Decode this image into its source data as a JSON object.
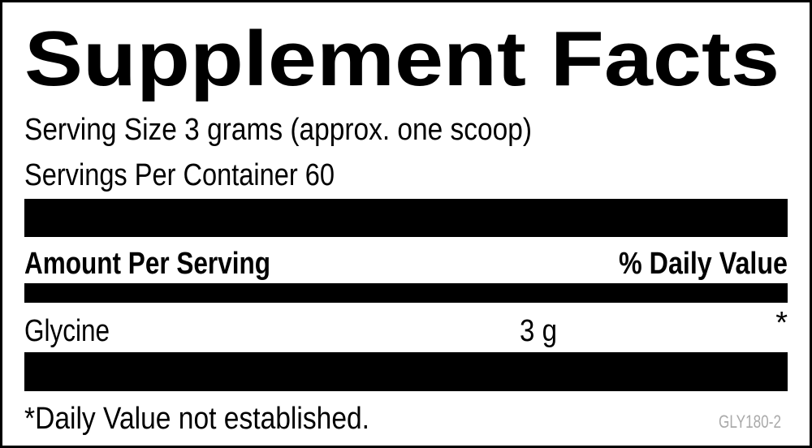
{
  "title": "Supplement Facts",
  "serving_size": "Serving Size 3 grams (approx. one scoop)",
  "servings_per_container": "Servings Per Container 60",
  "header": {
    "amount_per_serving": "Amount Per Serving",
    "daily_value": "% Daily Value"
  },
  "rows": [
    {
      "name": "Glycine",
      "amount": "3 g",
      "daily_value": "*"
    }
  ],
  "footnote": "*Daily Value not established.",
  "code": "GLY180-2"
}
